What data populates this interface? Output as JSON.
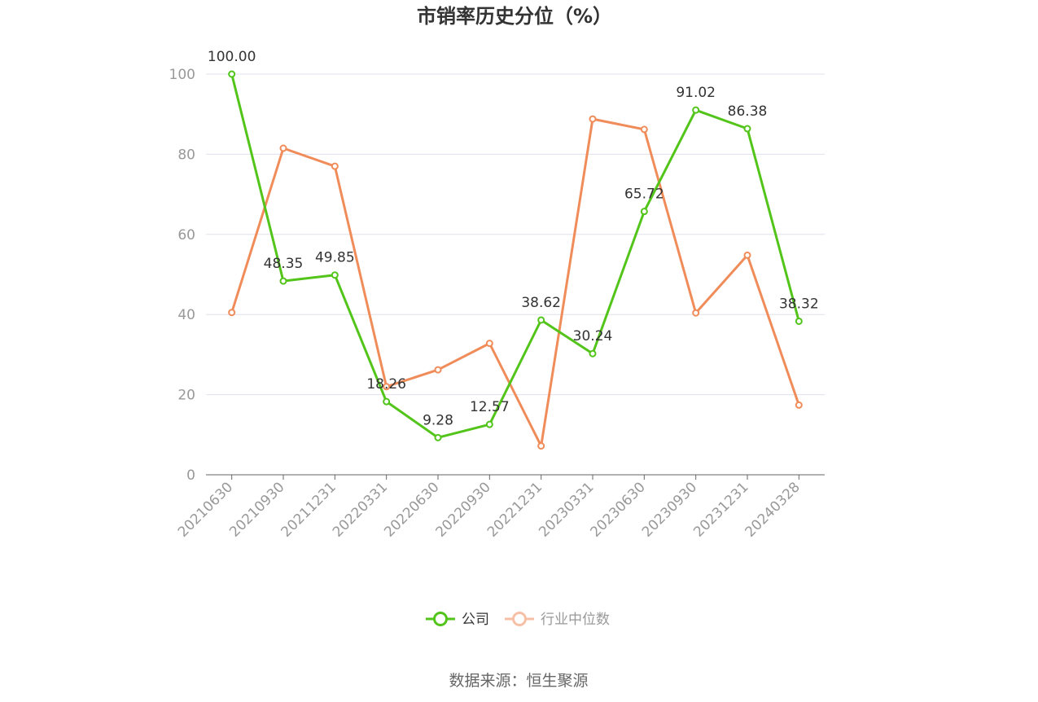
{
  "chart_data": {
    "type": "line",
    "title": "市销率历史分位（%）",
    "categories": [
      "20210630",
      "20210930",
      "20211231",
      "20220331",
      "20220630",
      "20220930",
      "20221231",
      "20230331",
      "20230630",
      "20230930",
      "20231231",
      "20240328"
    ],
    "ylim": [
      0,
      100
    ],
    "yticks": [
      0,
      20,
      40,
      60,
      80,
      100
    ],
    "grid": true,
    "legend_position": "bottom",
    "series": [
      {
        "name": "公司",
        "color": "#52c41a",
        "values": [
          100.0,
          48.35,
          49.85,
          18.26,
          9.28,
          12.57,
          38.62,
          30.24,
          65.72,
          91.02,
          86.38,
          38.32
        ],
        "labels": [
          "100.00",
          "48.35",
          "49.85",
          "18.26",
          "9.28",
          "12.57",
          "38.62",
          "30.24",
          "65.72",
          "91.02",
          "86.38",
          "38.32"
        ]
      },
      {
        "name": "行业中位数",
        "color": "#f08c5a",
        "values": [
          40.5,
          81.5,
          77.0,
          22.0,
          26.2,
          32.8,
          7.2,
          88.8,
          86.2,
          40.4,
          54.8,
          17.4
        ]
      }
    ]
  },
  "source": "数据来源：恒生聚源"
}
